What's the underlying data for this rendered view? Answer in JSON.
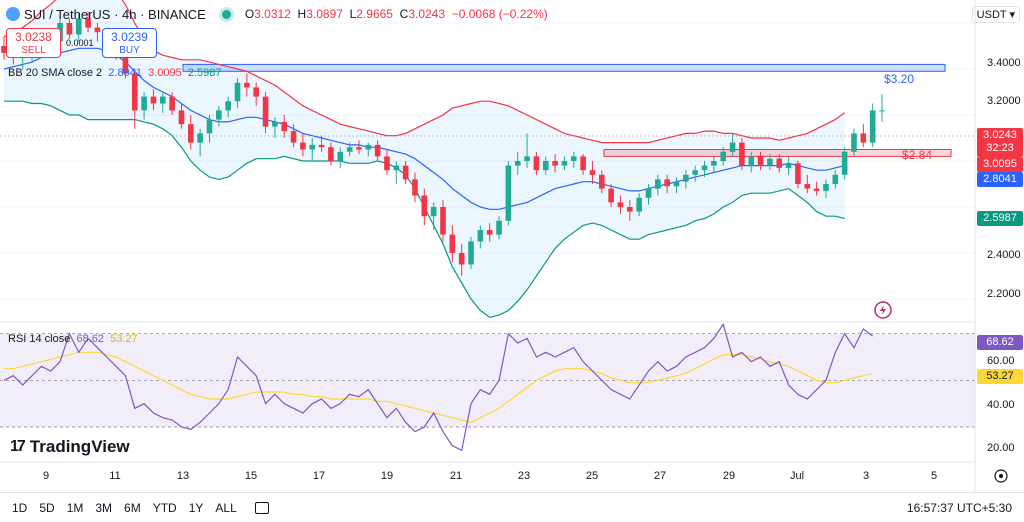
{
  "header": {
    "symbol": "SUI / TetherUS · 4h · BINANCE",
    "open_label": "O",
    "open": "3.0312",
    "high_label": "H",
    "high": "3.0897",
    "low_label": "L",
    "low": "2.9665",
    "close_label": "C",
    "close": "3.0243",
    "change": "−0.0068 (−0.22%)"
  },
  "trade": {
    "sell_price": "3.0238",
    "sell_label": "SELL",
    "spread": "0.0001",
    "buy_price": "3.0239",
    "buy_label": "BUY"
  },
  "currency": "USDT ▾",
  "indicator_bb": {
    "label": "BB 20 SMA close 2",
    "basis": "2.8041",
    "upper": "3.0095",
    "lower": "2.5987"
  },
  "indicator_rsi": {
    "label": "RSI 14 close",
    "rsi": "68.62",
    "ma": "53.27"
  },
  "price_axis": {
    "ticks": [
      "3.4000",
      "3.2000",
      "2.4000",
      "2.2000"
    ],
    "tags": {
      "last": "3.0243",
      "countdown": "32:23",
      "upper": "3.0095",
      "basis": "2.8041",
      "lower": "2.5987"
    }
  },
  "rsi_axis": {
    "ticks": [
      "60.00",
      "40.00",
      "20.00"
    ],
    "tags": {
      "rsi": "68.62",
      "ma": "53.27"
    }
  },
  "time_axis": [
    "9",
    "11",
    "13",
    "15",
    "17",
    "19",
    "21",
    "23",
    "25",
    "27",
    "29",
    "Jul",
    "3",
    "5"
  ],
  "annotations": {
    "resistance": "$3.20",
    "support": "$2.84"
  },
  "logo": {
    "mark": "17",
    "text": "TradingView"
  },
  "bottom_bar": {
    "timeframes": [
      "1D",
      "5D",
      "1M",
      "3M",
      "6M",
      "YTD",
      "1Y",
      "ALL"
    ],
    "clock": "16:57:37 UTC+5:30"
  },
  "colors": {
    "up": "#22ab94",
    "down": "#f23645",
    "basis": "#2962ff",
    "upper": "#f23645",
    "lower": "#089981",
    "rsi": "#7e57c2",
    "rsi_ma": "#fdd835",
    "resistance_zone": "#2962ff",
    "support_zone": "#f23645"
  },
  "chart_data": {
    "type": "candlestick",
    "candles": [
      [
        3.3,
        3.34,
        3.24,
        3.27
      ],
      [
        3.27,
        3.3,
        3.22,
        3.25
      ],
      [
        3.25,
        3.28,
        3.2,
        3.26
      ],
      [
        3.26,
        3.31,
        3.23,
        3.29
      ],
      [
        3.29,
        3.33,
        3.26,
        3.28
      ],
      [
        3.28,
        3.35,
        3.25,
        3.32
      ],
      [
        3.32,
        3.43,
        3.3,
        3.4
      ],
      [
        3.4,
        3.42,
        3.33,
        3.35
      ],
      [
        3.35,
        3.44,
        3.32,
        3.42
      ],
      [
        3.42,
        3.45,
        3.36,
        3.38
      ],
      [
        3.38,
        3.4,
        3.32,
        3.36
      ],
      [
        3.36,
        3.38,
        3.28,
        3.3
      ],
      [
        3.3,
        3.32,
        3.24,
        3.28
      ],
      [
        3.28,
        3.29,
        3.16,
        3.18
      ],
      [
        3.18,
        3.2,
        2.94,
        3.02
      ],
      [
        3.02,
        3.1,
        2.98,
        3.08
      ],
      [
        3.08,
        3.11,
        3.02,
        3.05
      ],
      [
        3.05,
        3.1,
        3.01,
        3.08
      ],
      [
        3.08,
        3.1,
        3.0,
        3.02
      ],
      [
        3.02,
        3.05,
        2.94,
        2.96
      ],
      [
        2.96,
        3.0,
        2.85,
        2.88
      ],
      [
        2.88,
        2.94,
        2.82,
        2.92
      ],
      [
        2.92,
        3.0,
        2.88,
        2.98
      ],
      [
        2.98,
        3.04,
        2.95,
        3.02
      ],
      [
        3.02,
        3.08,
        2.99,
        3.06
      ],
      [
        3.06,
        3.16,
        3.03,
        3.14
      ],
      [
        3.14,
        3.18,
        3.08,
        3.12
      ],
      [
        3.12,
        3.14,
        3.04,
        3.08
      ],
      [
        3.08,
        3.1,
        2.92,
        2.95
      ],
      [
        2.95,
        2.99,
        2.9,
        2.97
      ],
      [
        2.97,
        3.0,
        2.9,
        2.93
      ],
      [
        2.93,
        2.96,
        2.86,
        2.88
      ],
      [
        2.88,
        2.92,
        2.82,
        2.85
      ],
      [
        2.85,
        2.9,
        2.8,
        2.87
      ],
      [
        2.87,
        2.91,
        2.84,
        2.86
      ],
      [
        2.86,
        2.88,
        2.78,
        2.8
      ],
      [
        2.8,
        2.86,
        2.77,
        2.84
      ],
      [
        2.84,
        2.88,
        2.82,
        2.86
      ],
      [
        2.86,
        2.89,
        2.83,
        2.85
      ],
      [
        2.85,
        2.88,
        2.82,
        2.87
      ],
      [
        2.87,
        2.89,
        2.8,
        2.82
      ],
      [
        2.82,
        2.85,
        2.74,
        2.76
      ],
      [
        2.76,
        2.8,
        2.7,
        2.78
      ],
      [
        2.78,
        2.8,
        2.7,
        2.72
      ],
      [
        2.72,
        2.75,
        2.62,
        2.65
      ],
      [
        2.65,
        2.68,
        2.52,
        2.56
      ],
      [
        2.56,
        2.62,
        2.5,
        2.6
      ],
      [
        2.6,
        2.63,
        2.45,
        2.48
      ],
      [
        2.48,
        2.52,
        2.36,
        2.4
      ],
      [
        2.4,
        2.44,
        2.3,
        2.35
      ],
      [
        2.35,
        2.47,
        2.33,
        2.45
      ],
      [
        2.45,
        2.52,
        2.42,
        2.5
      ],
      [
        2.5,
        2.53,
        2.45,
        2.48
      ],
      [
        2.48,
        2.56,
        2.46,
        2.54
      ],
      [
        2.54,
        2.8,
        2.52,
        2.78
      ],
      [
        2.78,
        2.84,
        2.74,
        2.8
      ],
      [
        2.8,
        2.92,
        2.77,
        2.82
      ],
      [
        2.82,
        2.84,
        2.74,
        2.76
      ],
      [
        2.76,
        2.82,
        2.74,
        2.8
      ],
      [
        2.8,
        2.83,
        2.75,
        2.78
      ],
      [
        2.78,
        2.82,
        2.76,
        2.8
      ],
      [
        2.8,
        2.84,
        2.77,
        2.82
      ],
      [
        2.82,
        2.83,
        2.74,
        2.76
      ],
      [
        2.76,
        2.8,
        2.7,
        2.74
      ],
      [
        2.74,
        2.76,
        2.66,
        2.68
      ],
      [
        2.68,
        2.7,
        2.6,
        2.62
      ],
      [
        2.62,
        2.65,
        2.57,
        2.6
      ],
      [
        2.6,
        2.63,
        2.54,
        2.58
      ],
      [
        2.58,
        2.66,
        2.56,
        2.64
      ],
      [
        2.64,
        2.7,
        2.61,
        2.68
      ],
      [
        2.68,
        2.74,
        2.65,
        2.72
      ],
      [
        2.72,
        2.74,
        2.66,
        2.69
      ],
      [
        2.69,
        2.73,
        2.66,
        2.71
      ],
      [
        2.71,
        2.76,
        2.68,
        2.74
      ],
      [
        2.74,
        2.78,
        2.71,
        2.76
      ],
      [
        2.76,
        2.8,
        2.73,
        2.78
      ],
      [
        2.78,
        2.82,
        2.75,
        2.8
      ],
      [
        2.8,
        2.86,
        2.78,
        2.84
      ],
      [
        2.84,
        2.92,
        2.82,
        2.88
      ],
      [
        2.88,
        2.9,
        2.76,
        2.78
      ],
      [
        2.78,
        2.84,
        2.75,
        2.82
      ],
      [
        2.82,
        2.84,
        2.76,
        2.78
      ],
      [
        2.78,
        2.83,
        2.76,
        2.81
      ],
      [
        2.81,
        2.83,
        2.75,
        2.77
      ],
      [
        2.77,
        2.82,
        2.74,
        2.79
      ],
      [
        2.79,
        2.8,
        2.68,
        2.7
      ],
      [
        2.7,
        2.74,
        2.66,
        2.68
      ],
      [
        2.68,
        2.71,
        2.65,
        2.67
      ],
      [
        2.67,
        2.72,
        2.64,
        2.7
      ],
      [
        2.7,
        2.76,
        2.68,
        2.74
      ],
      [
        2.74,
        2.86,
        2.72,
        2.84
      ],
      [
        2.84,
        2.94,
        2.82,
        2.92
      ],
      [
        2.92,
        2.96,
        2.86,
        2.88
      ],
      [
        2.88,
        3.05,
        2.86,
        3.02
      ],
      [
        3.02,
        3.09,
        2.97,
        3.02
      ]
    ],
    "bb_basis": [
      3.2,
      3.21,
      3.22,
      3.23,
      3.25,
      3.26,
      3.27,
      3.28,
      3.29,
      3.29,
      3.29,
      3.28,
      3.26,
      3.23,
      3.19,
      3.15,
      3.12,
      3.1,
      3.08,
      3.05,
      3.02,
      3.0,
      2.98,
      2.97,
      2.97,
      2.98,
      2.99,
      2.99,
      2.98,
      2.97,
      2.96,
      2.94,
      2.92,
      2.91,
      2.9,
      2.89,
      2.88,
      2.87,
      2.87,
      2.86,
      2.86,
      2.85,
      2.84,
      2.83,
      2.81,
      2.78,
      2.75,
      2.72,
      2.68,
      2.65,
      2.62,
      2.6,
      2.59,
      2.59,
      2.6,
      2.61,
      2.62,
      2.64,
      2.66,
      2.68,
      2.69,
      2.7,
      2.71,
      2.71,
      2.7,
      2.69,
      2.68,
      2.67,
      2.67,
      2.68,
      2.69,
      2.7,
      2.71,
      2.72,
      2.73,
      2.74,
      2.75,
      2.76,
      2.77,
      2.78,
      2.78,
      2.78,
      2.78,
      2.78,
      2.79,
      2.78,
      2.77,
      2.76,
      2.76,
      2.77,
      2.78,
      2.79,
      2.8,
      2.8
    ],
    "bb_upper": [
      3.34,
      3.36,
      3.38,
      3.41,
      3.45,
      3.48,
      3.52,
      3.56,
      3.58,
      3.6,
      3.6,
      3.58,
      3.54,
      3.48,
      3.4,
      3.33,
      3.28,
      3.26,
      3.25,
      3.24,
      3.24,
      3.24,
      3.23,
      3.22,
      3.21,
      3.2,
      3.19,
      3.17,
      3.15,
      3.13,
      3.1,
      3.07,
      3.04,
      3.02,
      3.0,
      2.98,
      2.96,
      2.95,
      2.94,
      2.93,
      2.92,
      2.91,
      2.91,
      2.92,
      2.94,
      2.96,
      2.98,
      3.0,
      3.03,
      3.04,
      3.05,
      3.06,
      3.06,
      3.05,
      3.04,
      3.02,
      3.0,
      2.98,
      2.96,
      2.94,
      2.92,
      2.91,
      2.9,
      2.89,
      2.88,
      2.88,
      2.88,
      2.88,
      2.88,
      2.88,
      2.89,
      2.9,
      2.91,
      2.92,
      2.92,
      2.93,
      2.93,
      2.92,
      2.92,
      2.91,
      2.9,
      2.9,
      2.9,
      2.89,
      2.9,
      2.91,
      2.92,
      2.94,
      2.96,
      2.98,
      3.01
    ],
    "bb_lower": [
      3.06,
      3.06,
      3.06,
      3.05,
      3.05,
      3.04,
      3.02,
      3.0,
      3.0,
      2.98,
      2.98,
      2.98,
      2.98,
      2.98,
      2.98,
      2.97,
      2.96,
      2.94,
      2.91,
      2.86,
      2.8,
      2.76,
      2.73,
      2.72,
      2.73,
      2.76,
      2.79,
      2.81,
      2.81,
      2.81,
      2.82,
      2.81,
      2.8,
      2.8,
      2.8,
      2.8,
      2.8,
      2.79,
      2.79,
      2.79,
      2.8,
      2.79,
      2.77,
      2.74,
      2.68,
      2.6,
      2.52,
      2.44,
      2.34,
      2.27,
      2.2,
      2.15,
      2.12,
      2.13,
      2.15,
      2.19,
      2.24,
      2.3,
      2.36,
      2.42,
      2.46,
      2.49,
      2.52,
      2.53,
      2.52,
      2.5,
      2.48,
      2.46,
      2.46,
      2.48,
      2.49,
      2.5,
      2.51,
      2.52,
      2.54,
      2.55,
      2.57,
      2.6,
      2.62,
      2.65,
      2.66,
      2.66,
      2.66,
      2.67,
      2.68,
      2.65,
      2.62,
      2.58,
      2.56,
      2.56,
      2.55,
      2.57,
      2.59,
      2.59
    ],
    "rsi": [
      50,
      52,
      48,
      52,
      56,
      54,
      58,
      70,
      62,
      68,
      64,
      60,
      56,
      52,
      38,
      40,
      36,
      34,
      33,
      30,
      29,
      32,
      36,
      40,
      46,
      60,
      56,
      52,
      40,
      44,
      40,
      38,
      36,
      40,
      42,
      38,
      40,
      44,
      43,
      46,
      40,
      34,
      38,
      32,
      28,
      30,
      36,
      28,
      22,
      20,
      40,
      46,
      44,
      50,
      70,
      66,
      68,
      60,
      62,
      60,
      62,
      64,
      58,
      54,
      50,
      46,
      44,
      42,
      48,
      54,
      58,
      54,
      56,
      60,
      62,
      64,
      68,
      74,
      60,
      62,
      58,
      60,
      56,
      58,
      48,
      44,
      42,
      46,
      50,
      62,
      70,
      64,
      72,
      69
    ],
    "rsi_ma": [
      55,
      55,
      56,
      57,
      58,
      59,
      60,
      61,
      62,
      62,
      62,
      61,
      60,
      58,
      56,
      54,
      52,
      50,
      48,
      46,
      44,
      43,
      42,
      42,
      42,
      43,
      44,
      45,
      45,
      45,
      45,
      44,
      44,
      43,
      43,
      42,
      42,
      42,
      42,
      42,
      41,
      41,
      40,
      39,
      38,
      37,
      36,
      35,
      34,
      33,
      32,
      34,
      36,
      38,
      41,
      44,
      47,
      50,
      52,
      54,
      55,
      55,
      55,
      54,
      53,
      51,
      50,
      49,
      49,
      49,
      50,
      51,
      52,
      53,
      55,
      57,
      59,
      61,
      61,
      61,
      60,
      59,
      58,
      57,
      56,
      54,
      52,
      50,
      49,
      49,
      50,
      51,
      52,
      53
    ],
    "price_range": [
      2.1,
      3.5
    ],
    "rsi_range": [
      15,
      75
    ],
    "resistance_zone": [
      3.19,
      3.22
    ],
    "support_zone": [
      2.82,
      2.85
    ]
  }
}
